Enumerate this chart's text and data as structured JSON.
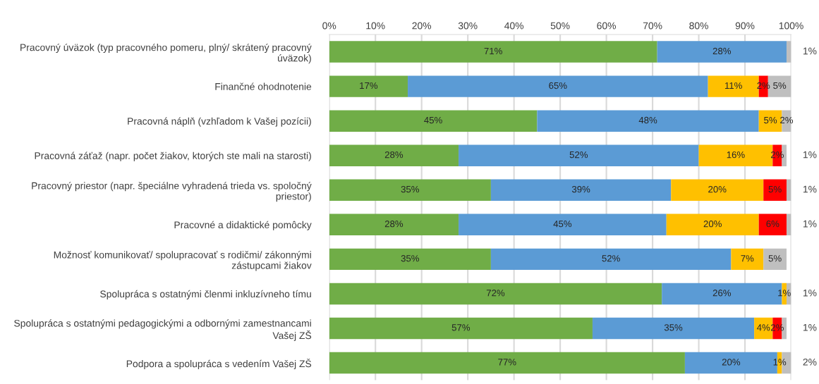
{
  "chart_data": {
    "type": "bar",
    "orientation": "horizontal",
    "stacked": true,
    "categories": [
      "Pracovný úväzok (typ pracovného pomeru, plný/ skrátený pracovný\núväzok)",
      "Finančné ohodnotenie",
      "Pracovná náplň (vzhľadom k Vašej pozícii)",
      "Pracovná záťaž (napr. počet žiakov, ktorých ste mali na starosti)",
      "Pracovný priestor (napr. špeciálne vyhradená trieda vs. spoločný\npriestor)",
      "Pracovné a didaktické pomôcky",
      "Možnosť komunikovať/ spolupracovať s rodičmi/ zákonnými\nzástupcami žiakov",
      "Spolupráca s ostatnými členmi inkluzívneho tímu",
      "Spolupráca s ostatnými pedagogickými a odbornými zamestnancami\nVašej ZŠ",
      "Podpora a spolupráca s vedením Vašej ZŠ"
    ],
    "series": [
      {
        "color": "#70ad47",
        "values": [
          71,
          17,
          45,
          28,
          35,
          28,
          35,
          72,
          57,
          77
        ],
        "value_labels": [
          "71%",
          "17%",
          "45%",
          "28%",
          "35%",
          "28%",
          "35%",
          "72%",
          "57%",
          "77%"
        ]
      },
      {
        "color": "#5b9bd5",
        "values": [
          28,
          65,
          48,
          52,
          39,
          45,
          52,
          26,
          35,
          20
        ],
        "value_labels": [
          "28%",
          "65%",
          "48%",
          "52%",
          "39%",
          "45%",
          "52%",
          "26%",
          "35%",
          "20%"
        ]
      },
      {
        "color": "#ffc000",
        "values": [
          null,
          11,
          5,
          16,
          20,
          20,
          7,
          1,
          4,
          1
        ],
        "value_labels": [
          null,
          "11%",
          "5%",
          "16%",
          "20%",
          "20%",
          "7%",
          "1%",
          "4%",
          "1%"
        ]
      },
      {
        "color": "#ff0000",
        "values": [
          null,
          2,
          null,
          2,
          5,
          6,
          null,
          null,
          2,
          null
        ],
        "value_labels": [
          null,
          "2%",
          null,
          "2%",
          "5%",
          "6%",
          null,
          null,
          "2%",
          null
        ]
      },
      {
        "color": "#bfbfbf",
        "values": [
          1,
          5,
          2,
          1,
          1,
          1,
          5,
          1,
          1,
          2
        ],
        "value_labels": [
          "1%",
          "5%",
          "2%",
          "1%",
          "1%",
          "1%",
          "5%",
          "1%",
          "1%",
          "2%"
        ]
      }
    ],
    "xlim": [
      0,
      100
    ],
    "xticks": [
      {
        "value": 0,
        "label": "0%"
      },
      {
        "value": 10,
        "label": "10%"
      },
      {
        "value": 20,
        "label": "20%"
      },
      {
        "value": 30,
        "label": "30%"
      },
      {
        "value": 40,
        "label": "40%"
      },
      {
        "value": 50,
        "label": "50%"
      },
      {
        "value": 60,
        "label": "60%"
      },
      {
        "value": 70,
        "label": "70%"
      },
      {
        "value": 80,
        "label": "80%"
      },
      {
        "value": 90,
        "label": "90%"
      },
      {
        "value": 100,
        "label": "100%"
      }
    ],
    "grid": "x"
  }
}
